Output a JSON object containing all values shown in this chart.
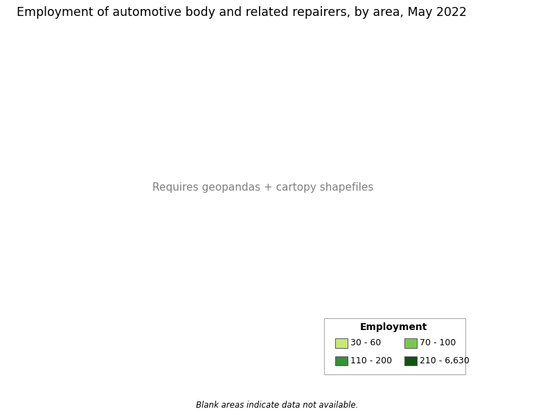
{
  "title": "Employment of automotive body and related repairers, by area, May 2022",
  "legend_title": "Employment",
  "legend_entries": [
    {
      "label": "30 - 60",
      "color": "#c8e878"
    },
    {
      "label": "70 - 100",
      "color": "#78c850"
    },
    {
      "label": "110 - 200",
      "color": "#389038"
    },
    {
      "label": "210 - 6,630",
      "color": "#145214"
    }
  ],
  "footnote": "Blank areas indicate data not available.",
  "background_color": "#ffffff",
  "title_fontsize": 12.5,
  "map_edge_color": "#555555",
  "map_edge_width": 0.25,
  "state_edge_color": "#222222",
  "state_edge_width": 0.6,
  "no_data_color": "#ffffff",
  "county_weights": [
    0.25,
    0.25,
    0.28,
    0.22
  ],
  "no_data_prob": 0.07,
  "random_seed": 12345
}
